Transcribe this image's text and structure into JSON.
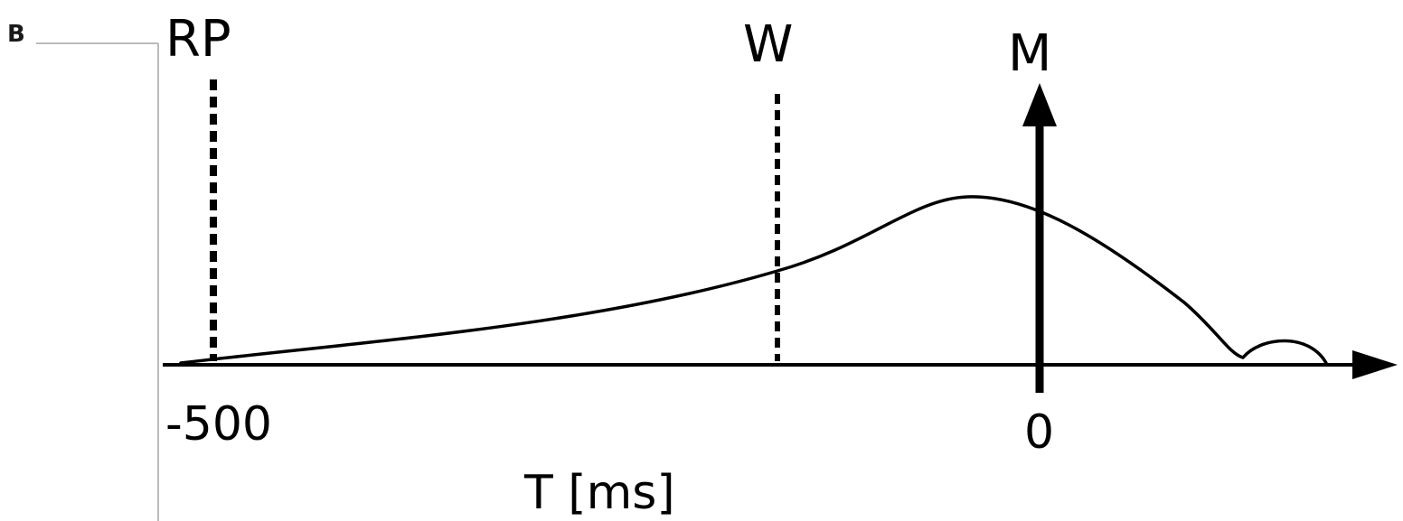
{
  "panel_label": "B",
  "markers": {
    "rp": "RP",
    "w": "W",
    "m": "M"
  },
  "axis": {
    "tick_start": "-500",
    "tick_zero": "0",
    "title": "T [ms]"
  }
}
